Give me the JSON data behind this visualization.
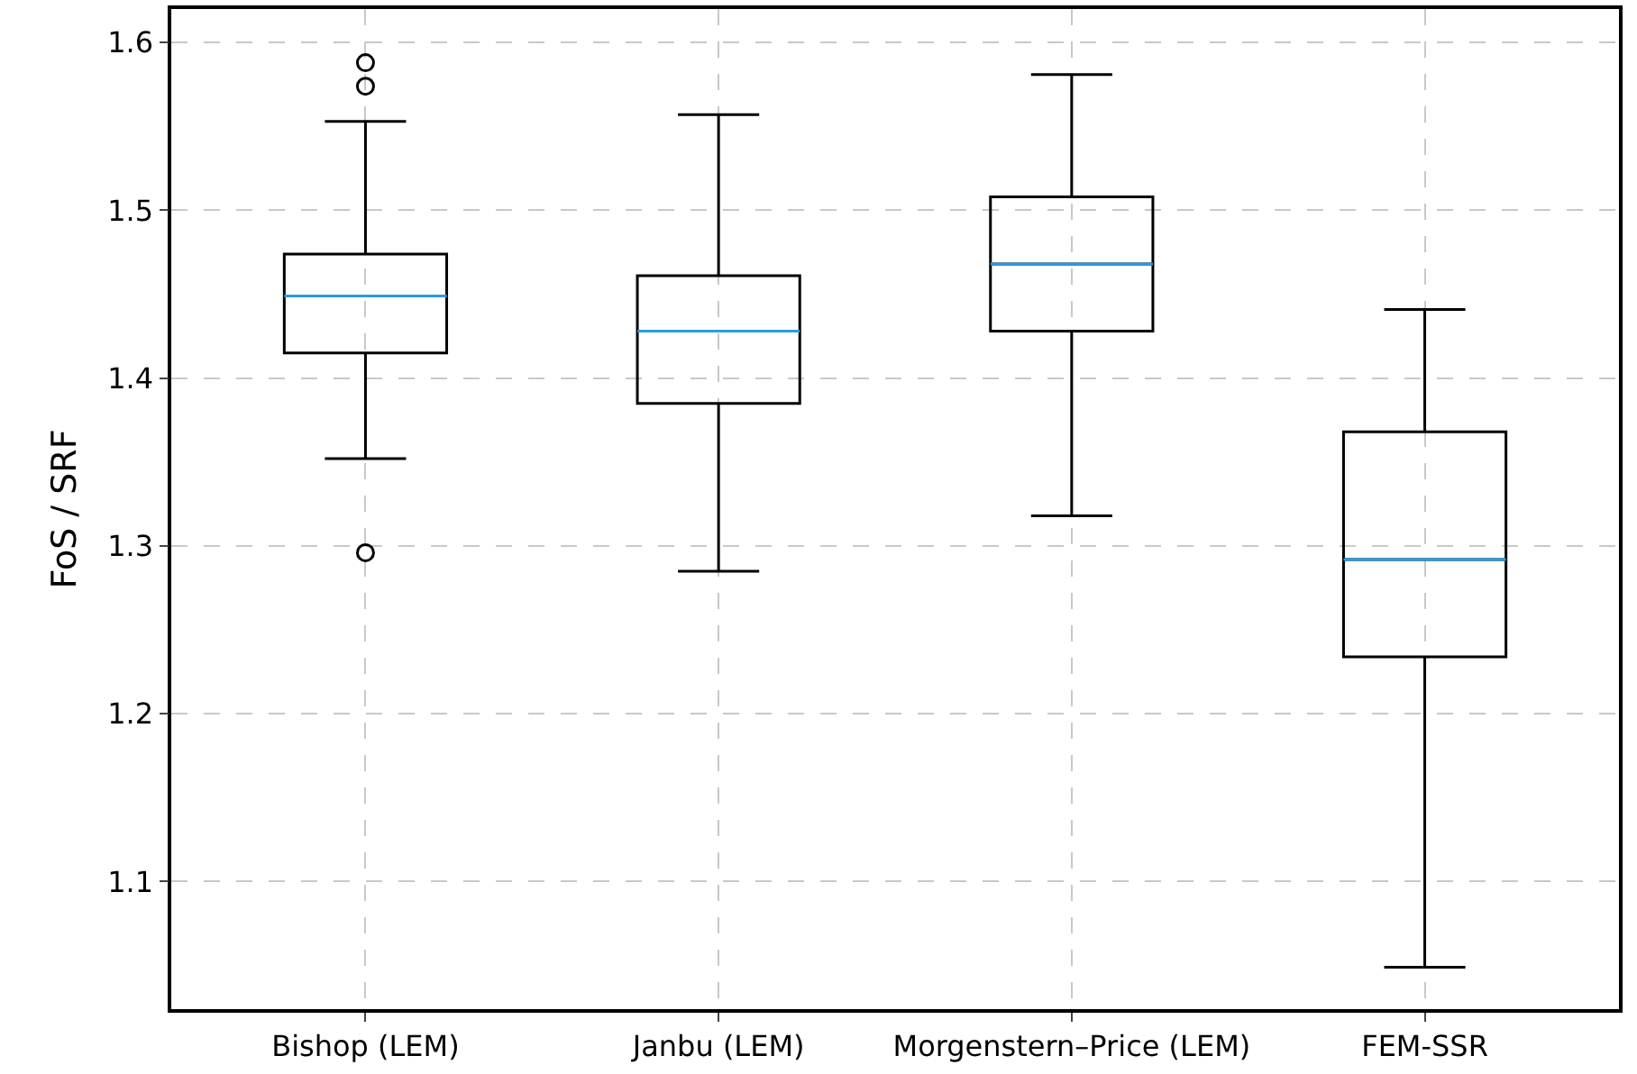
{
  "chart_data": {
    "type": "box",
    "ylabel": "FoS / SRF",
    "categories": [
      "Bishop (LEM)",
      "Janbu (LEM)",
      "Morgenstern–Price (LEM)",
      "FEM-SSR"
    ],
    "series": [
      {
        "color": "#000000",
        "boxes": [
          {
            "low": 1.352,
            "q1": 1.415,
            "median": 1.449,
            "q3": 1.474,
            "high": 1.553,
            "outliers": [
              1.588,
              1.574,
              1.296
            ]
          },
          {
            "low": 1.285,
            "q1": 1.385,
            "median": 1.428,
            "q3": 1.461,
            "high": 1.557
          },
          {
            "low": 1.318,
            "q1": 1.428,
            "median": 1.468,
            "q3": 1.508,
            "high": 1.581
          },
          {
            "low": 1.049,
            "q1": 1.234,
            "median": 1.292,
            "q3": 1.368,
            "high": 1.441
          }
        ]
      }
    ],
    "ylim": [
      1.024,
      1.62
    ],
    "yticks": [
      1.1,
      1.2,
      1.3,
      1.4,
      1.5,
      1.6
    ],
    "grid": true,
    "marker": "circle"
  }
}
